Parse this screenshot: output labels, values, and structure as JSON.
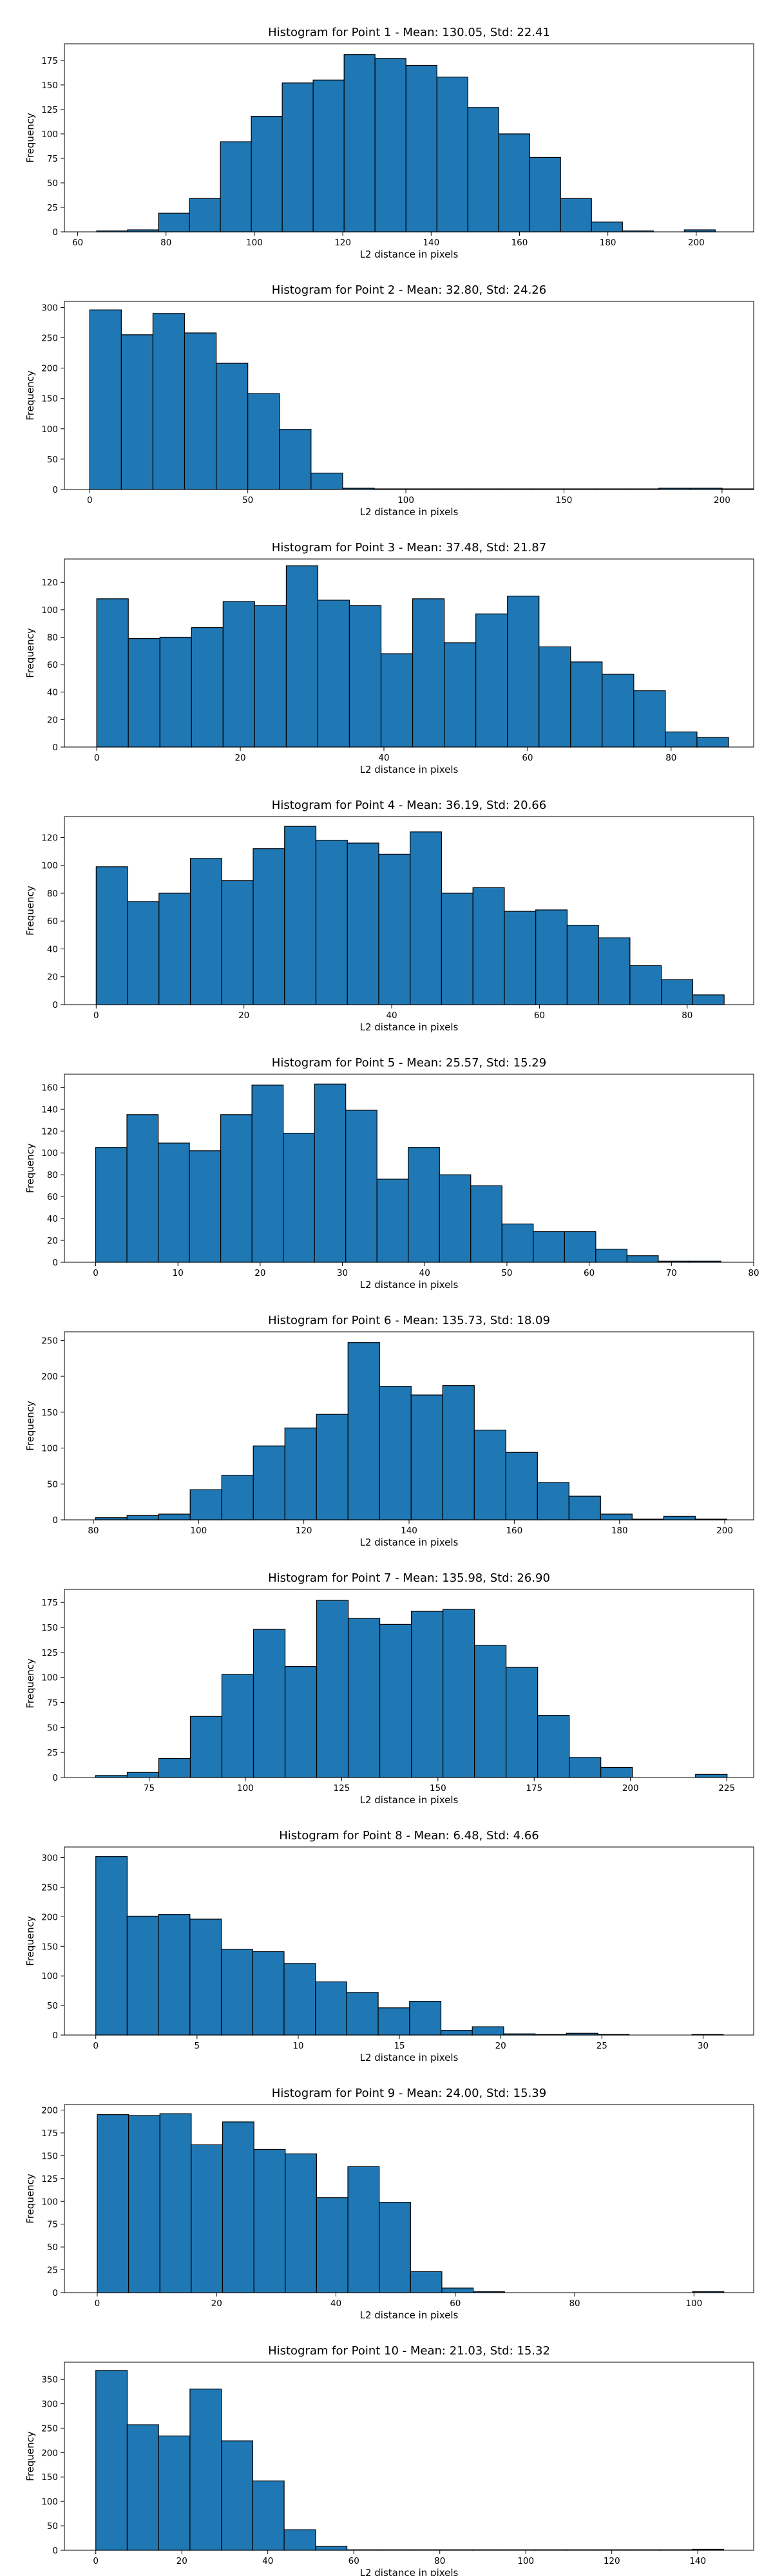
{
  "chart_data": [
    {
      "type": "bar",
      "title": "Histogram for Point 1 - Mean: 130.05, Std: 22.41",
      "xlabel": "L2 distance in pixels",
      "ylabel": "Frequency",
      "xlim": [
        57,
        213
      ],
      "ylim": [
        0,
        192
      ],
      "xticks": [
        60,
        80,
        100,
        120,
        140,
        160,
        180,
        200
      ],
      "yticks": [
        0,
        25,
        50,
        75,
        100,
        125,
        150,
        175
      ],
      "bin_edges": [
        64.3,
        71.3,
        78.3,
        85.3,
        92.3,
        99.3,
        106.3,
        113.3,
        120.3,
        127.3,
        134.3,
        141.3,
        148.3,
        155.3,
        162.3,
        169.3,
        176.3,
        183.3,
        190.3,
        197.3,
        204.3,
        211.3
      ],
      "values": [
        1,
        2,
        19,
        34,
        92,
        118,
        152,
        155,
        181,
        177,
        170,
        158,
        127,
        100,
        76,
        34,
        10,
        1,
        0,
        2,
        0
      ]
    },
    {
      "type": "bar",
      "title": "Histogram for Point 2 - Mean: 32.80, Std: 24.26",
      "xlabel": "L2 distance in pixels",
      "ylabel": "Frequency",
      "xlim": [
        -8,
        210
      ],
      "ylim": [
        0,
        310
      ],
      "xticks": [
        0,
        50,
        100,
        150,
        200
      ],
      "yticks": [
        0,
        50,
        100,
        150,
        200,
        250,
        300
      ],
      "bin_edges": [
        0,
        10,
        20,
        30,
        40,
        50,
        60,
        70,
        80,
        90,
        100,
        110,
        120,
        130,
        140,
        150,
        160,
        170,
        180,
        190,
        200,
        210
      ],
      "values": [
        296,
        255,
        290,
        258,
        208,
        158,
        99,
        27,
        2,
        1,
        1,
        1,
        1,
        1,
        1,
        1,
        1,
        1,
        2,
        2,
        1
      ]
    },
    {
      "type": "bar",
      "title": "Histogram for Point 3 - Mean: 37.48, Std: 21.87",
      "xlabel": "L2 distance in pixels",
      "ylabel": "Frequency",
      "xlim": [
        -4.5,
        91.5
      ],
      "ylim": [
        0,
        137
      ],
      "xticks": [
        0,
        20,
        40,
        60,
        80
      ],
      "yticks": [
        0,
        20,
        40,
        60,
        80,
        100,
        120
      ],
      "bin_edges": [
        0,
        4.4,
        8.8,
        13.2,
        17.6,
        22,
        26.4,
        30.8,
        35.2,
        39.6,
        44,
        48.4,
        52.8,
        57.2,
        61.6,
        66,
        70.4,
        74.8,
        79.2,
        83.6,
        88
      ],
      "values": [
        108,
        79,
        80,
        87,
        106,
        103,
        132,
        107,
        103,
        68,
        108,
        76,
        97,
        110,
        73,
        62,
        53,
        41,
        11,
        7
      ]
    },
    {
      "type": "bar",
      "title": "Histogram for Point 4 - Mean: 36.19, Std: 20.66",
      "xlabel": "L2 distance in pixels",
      "ylabel": "Frequency",
      "xlim": [
        -4.3,
        89
      ],
      "ylim": [
        0,
        135
      ],
      "xticks": [
        0,
        20,
        40,
        60,
        80
      ],
      "yticks": [
        0,
        20,
        40,
        60,
        80,
        100,
        120
      ],
      "bin_edges": [
        0,
        4.25,
        8.5,
        12.75,
        17,
        21.25,
        25.5,
        29.75,
        34,
        38.25,
        42.5,
        46.75,
        51,
        55.25,
        59.5,
        63.75,
        68,
        72.25,
        76.5,
        80.75,
        85
      ],
      "values": [
        99,
        74,
        80,
        105,
        89,
        112,
        128,
        118,
        116,
        108,
        124,
        80,
        84,
        67,
        68,
        57,
        48,
        28,
        18,
        7
      ]
    },
    {
      "type": "bar",
      "title": "Histogram for Point 5 - Mean: 25.57, Std: 15.29",
      "xlabel": "L2 distance in pixels",
      "ylabel": "Frequency",
      "xlim": [
        -3.8,
        80
      ],
      "ylim": [
        0,
        172
      ],
      "xticks": [
        0,
        10,
        20,
        30,
        40,
        50,
        60,
        70,
        80
      ],
      "yticks": [
        0,
        20,
        40,
        60,
        80,
        100,
        120,
        140,
        160
      ],
      "bin_edges": [
        0,
        3.8,
        7.6,
        11.4,
        15.2,
        19,
        22.8,
        26.6,
        30.4,
        34.2,
        38,
        41.8,
        45.6,
        49.4,
        53.2,
        57,
        60.8,
        64.6,
        68.4,
        72.2,
        76
      ],
      "values": [
        105,
        135,
        109,
        102,
        135,
        162,
        118,
        163,
        139,
        76,
        105,
        80,
        70,
        35,
        28,
        28,
        12,
        6,
        1,
        1
      ]
    },
    {
      "type": "bar",
      "title": "Histogram for Point 6 - Mean: 135.73, Std: 18.09",
      "xlabel": "L2 distance in pixels",
      "ylabel": "Frequency",
      "xlim": [
        74.5,
        205.5
      ],
      "ylim": [
        0,
        262
      ],
      "xticks": [
        80,
        100,
        120,
        140,
        160,
        180,
        200
      ],
      "yticks": [
        0,
        50,
        100,
        150,
        200,
        250
      ],
      "bin_edges": [
        80.4,
        86.4,
        92.4,
        98.4,
        104.4,
        110.4,
        116.4,
        122.4,
        128.4,
        134.4,
        140.4,
        146.4,
        152.4,
        158.4,
        164.4,
        170.4,
        176.4,
        182.4,
        188.4,
        194.4,
        200.4
      ],
      "values": [
        3,
        6,
        8,
        42,
        62,
        103,
        128,
        147,
        247,
        186,
        174,
        187,
        125,
        94,
        52,
        33,
        8,
        1,
        5,
        1
      ]
    },
    {
      "type": "bar",
      "title": "Histogram for Point 7 - Mean: 135.98, Std: 26.90",
      "xlabel": "L2 distance in pixels",
      "ylabel": "Frequency",
      "xlim": [
        53,
        232
      ],
      "ylim": [
        0,
        188
      ],
      "xticks": [
        75,
        100,
        125,
        150,
        175,
        200,
        225
      ],
      "yticks": [
        0,
        25,
        50,
        75,
        100,
        125,
        150,
        175
      ],
      "bin_edges": [
        61.1,
        69.3,
        77.5,
        85.7,
        93.9,
        102.1,
        110.3,
        118.5,
        126.7,
        134.9,
        143.1,
        151.3,
        159.5,
        167.7,
        175.9,
        184.1,
        192.3,
        200.5,
        208.7,
        216.9,
        225.1
      ],
      "values": [
        2,
        5,
        19,
        61,
        103,
        148,
        111,
        177,
        159,
        153,
        166,
        168,
        132,
        110,
        62,
        20,
        10,
        0,
        0,
        3
      ]
    },
    {
      "type": "bar",
      "title": "Histogram for Point 8 - Mean: 6.48, Std: 4.66",
      "xlabel": "L2 distance in pixels",
      "ylabel": "Frequency",
      "xlim": [
        -1.55,
        32.5
      ],
      "ylim": [
        0,
        318
      ],
      "xticks": [
        0,
        5,
        10,
        15,
        20,
        25,
        30
      ],
      "yticks": [
        0,
        50,
        100,
        150,
        200,
        250,
        300
      ],
      "bin_edges": [
        0,
        1.55,
        3.1,
        4.65,
        6.2,
        7.75,
        9.3,
        10.85,
        12.4,
        13.95,
        15.5,
        17.05,
        18.6,
        20.15,
        21.7,
        23.25,
        24.8,
        26.35,
        27.9,
        29.45,
        31
      ],
      "values": [
        302,
        201,
        204,
        196,
        145,
        141,
        121,
        90,
        72,
        46,
        57,
        8,
        14,
        2,
        1,
        3,
        1,
        0,
        0,
        1
      ]
    },
    {
      "type": "bar",
      "title": "Histogram for Point 9 - Mean: 24.00, Std: 15.39",
      "xlabel": "L2 distance in pixels",
      "ylabel": "Frequency",
      "xlim": [
        -5.5,
        110
      ],
      "ylim": [
        0,
        206
      ],
      "xticks": [
        0,
        20,
        40,
        60,
        80,
        100
      ],
      "yticks": [
        0,
        25,
        50,
        75,
        100,
        125,
        150,
        175,
        200
      ],
      "bin_edges": [
        0,
        5.25,
        10.5,
        15.75,
        21,
        26.25,
        31.5,
        36.75,
        42,
        47.25,
        52.5,
        57.75,
        63,
        68.25,
        73.5,
        78.75,
        84,
        89.25,
        94.5,
        99.75,
        105
      ],
      "values": [
        195,
        194,
        196,
        162,
        187,
        157,
        152,
        104,
        138,
        99,
        23,
        5,
        1,
        0,
        0,
        0,
        0,
        0,
        0,
        1
      ]
    },
    {
      "type": "bar",
      "title": "Histogram for Point 10 - Mean: 21.03, Std: 15.32",
      "xlabel": "L2 distance in pixels",
      "ylabel": "Frequency",
      "xlim": [
        -7.3,
        153
      ],
      "ylim": [
        0,
        385
      ],
      "xticks": [
        0,
        20,
        40,
        60,
        80,
        100,
        120,
        140
      ],
      "yticks": [
        0,
        50,
        100,
        150,
        200,
        250,
        300,
        350
      ],
      "bin_edges": [
        0,
        7.3,
        14.6,
        21.9,
        29.2,
        36.5,
        43.8,
        51.1,
        58.4,
        65.7,
        73,
        80.3,
        87.6,
        94.9,
        102.2,
        109.5,
        116.8,
        124.1,
        131.4,
        138.7,
        146
      ],
      "values": [
        368,
        257,
        234,
        330,
        224,
        142,
        42,
        8,
        1,
        1,
        1,
        1,
        1,
        1,
        1,
        1,
        1,
        1,
        1,
        2
      ]
    }
  ]
}
